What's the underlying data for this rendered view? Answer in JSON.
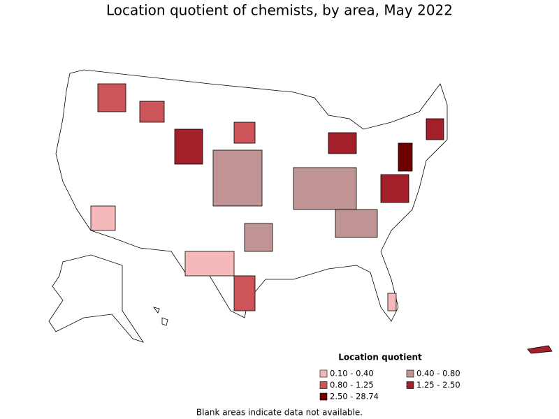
{
  "header": {
    "title": "Location quotient of chemists, by area, May 2022"
  },
  "legend": {
    "title": "Location quotient",
    "items": [
      {
        "label": "0.10 - 0.40",
        "color": "#f5b9bb"
      },
      {
        "label": "0.40 - 0.80",
        "color": "#c09494"
      },
      {
        "label": "0.80 - 1.25",
        "color": "#cb5558"
      },
      {
        "label": "1.25 - 2.50",
        "color": "#a31f2a"
      },
      {
        "label": "2.50 - 28.74",
        "color": "#6e0000"
      }
    ]
  },
  "footnote": "Blank areas indicate data not available."
}
